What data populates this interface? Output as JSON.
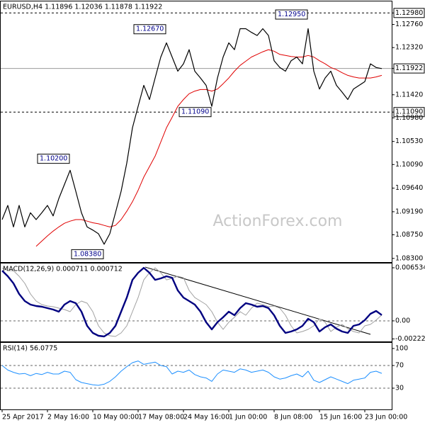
{
  "chart_data": [
    {
      "type": "line",
      "title": "EURUSD,H4  1.11896 1.12036 1.11878 1.11922",
      "watermark": "ActionForex.com",
      "xlim": [
        -0.25,
        68.75
      ],
      "ylim": [
        1.0823,
        1.132
      ],
      "yticks": [
        {
          "value": 1.1298,
          "label": "1.12980"
        },
        {
          "value": 1.1276,
          "label": "1.12760"
        },
        {
          "value": 1.1232,
          "label": "1.12320"
        },
        1.11922,
        {
          "value": 1.1142,
          "label": "1.11420"
        },
        {
          "value": 1.1109,
          "label": "1.11090"
        },
        {
          "value": 1.1098,
          "label": "1.10980"
        },
        {
          "value": 1.1053,
          "label": "1.10530"
        },
        {
          "value": 1.1009,
          "label": "1.10090"
        },
        {
          "value": 1.0964,
          "label": "1.09640"
        },
        {
          "value": 1.0919,
          "label": "1.09190"
        },
        {
          "value": 1.0875,
          "label": "1.08750"
        },
        {
          "value": 1.083,
          "label": "1.08300"
        }
      ],
      "hlines": [
        1.1298,
        1.1109
      ],
      "current": 1.11922,
      "label_boxes": true,
      "series": [
        {
          "color": "#000000",
          "width": 1.2,
          "values": [
            1.0904,
            1.0931,
            1.089,
            1.0931,
            1.089,
            1.0917,
            1.0904,
            1.0917,
            1.0931,
            1.0911,
            1.0944,
            1.0971,
            1.0998,
            1.0958,
            1.0917,
            1.089,
            1.0884,
            1.0877,
            1.0857,
            1.0877,
            1.0917,
            1.0958,
            1.1012,
            1.1079,
            1.112,
            1.116,
            1.1133,
            1.1174,
            1.1214,
            1.1241,
            1.1214,
            1.1187,
            1.1201,
            1.1228,
            1.1187,
            1.1174,
            1.116,
            1.112,
            1.1174,
            1.1214,
            1.1241,
            1.1228,
            1.1268,
            1.1268,
            1.1261,
            1.1255,
            1.1268,
            1.1255,
            1.1207,
            1.1194,
            1.1187,
            1.1207,
            1.1214,
            1.1201,
            1.1268,
            1.1187,
            1.1153,
            1.1174,
            1.1187,
            1.116,
            1.1147,
            1.1133,
            1.1153,
            1.116,
            1.1167,
            1.1201,
            1.1194,
            1.1192
          ]
        },
        {
          "color": "#e00000",
          "width": 1,
          "values": [
            null,
            null,
            null,
            null,
            null,
            null,
            1.0853,
            1.0863,
            1.0873,
            1.0882,
            1.089,
            1.0897,
            1.0901,
            1.0904,
            1.0904,
            1.0901,
            1.0898,
            1.0896,
            1.0893,
            1.089,
            1.0893,
            1.0904,
            1.092,
            1.0938,
            1.096,
            1.0985,
            1.1005,
            1.1025,
            1.1052,
            1.1079,
            1.1099,
            1.112,
            1.1133,
            1.1144,
            1.1149,
            1.1152,
            1.1152,
            1.1149,
            1.1153,
            1.1163,
            1.1174,
            1.1187,
            1.1198,
            1.1206,
            1.1214,
            1.1219,
            1.1224,
            1.1228,
            1.1225,
            1.1219,
            1.1217,
            1.1215,
            1.1214,
            1.1214,
            1.1217,
            1.1214,
            1.1207,
            1.1201,
            1.1194,
            1.119,
            1.1184,
            1.1179,
            1.1176,
            1.1174,
            1.1174,
            1.1174,
            1.1176,
            1.1179
          ]
        }
      ],
      "annotations": [
        {
          "x": 12,
          "value": 1.102,
          "label": "1.10200"
        },
        {
          "x": 29,
          "value": 1.1267,
          "label": "1.12670"
        },
        {
          "x": 18,
          "value": 1.0838,
          "label": "1.08380"
        },
        {
          "x": 37,
          "value": 1.1109,
          "label": "1.11090"
        },
        {
          "x": 54,
          "value": 1.1295,
          "label": "1.12950"
        }
      ]
    },
    {
      "type": "line",
      "title": "MACD(12,26,9) 0.000711 0.000712",
      "xlim": [
        -0.25,
        68.75
      ],
      "ylim": [
        -0.00253,
        0.00706
      ],
      "yticks": [
        0.006534,
        {
          "value": 0,
          "label": "0.00"
        },
        -0.002226
      ],
      "hlines": [
        0
      ],
      "series": [
        {
          "color": "#000080",
          "width": 2.4,
          "values": [
            0.00618,
            0.00549,
            0.00462,
            0.00331,
            0.00244,
            0.002,
            0.00183,
            0.00174,
            0.00157,
            0.00139,
            0.00113,
            0.002,
            0.00244,
            0.00218,
            0.00113,
            -0.00061,
            -0.00148,
            -0.00183,
            -0.00192,
            -0.00148,
            -0.00061,
            0.00113,
            0.00287,
            0.00505,
            0.00592,
            0.00653,
            0.00592,
            0.00505,
            0.00523,
            0.00549,
            0.00531,
            0.00375,
            0.00287,
            0.00244,
            0.002,
            0.00113,
            -0.00017,
            -0.00105,
            -0.00017,
            0.00044,
            0.00113,
            0.0007,
            0.00157,
            0.00218,
            0.002,
            0.00174,
            0.00183,
            0.00157,
            0.0007,
            -0.00061,
            -0.00148,
            -0.00131,
            -0.00105,
            -0.00061,
            0.00026,
            -0.00017,
            -0.00131,
            -0.00078,
            -0.00044,
            -0.00096,
            -0.00131,
            -0.00148,
            -0.00061,
            -0.00044,
            9e-05,
            0.00087,
            0.00122,
            0.00071
          ]
        },
        {
          "color": "#a0a0a0",
          "width": 1,
          "values": [
            0.0065,
            0.0062,
            0.00618,
            0.00549,
            0.00462,
            0.00331,
            0.00244,
            0.002,
            0.00183,
            0.00174,
            0.00157,
            0.00139,
            0.00113,
            0.002,
            0.00244,
            0.00218,
            0.00113,
            -0.00061,
            -0.00148,
            -0.00183,
            -0.00192,
            -0.00148,
            -0.00061,
            0.00113,
            0.00287,
            0.00505,
            0.00592,
            0.00653,
            0.00592,
            0.00505,
            0.00523,
            0.00549,
            0.00531,
            0.00375,
            0.00287,
            0.00244,
            0.002,
            0.00113,
            -0.00017,
            -0.00105,
            -0.00017,
            0.00044,
            0.00113,
            0.0007,
            0.00157,
            0.00218,
            0.002,
            0.00174,
            0.00183,
            0.00157,
            0.0007,
            -0.00061,
            -0.00148,
            -0.00131,
            -0.00105,
            -0.00061,
            0.00026,
            -0.00017,
            -0.00131,
            -0.00078,
            -0.00044,
            -0.00096,
            -0.00131,
            -0.00148,
            -0.00061,
            -0.00044,
            9e-05,
            0.000712
          ]
        }
      ],
      "trendline": {
        "x": [
          25.25,
          65
        ],
        "values": [
          0.00662,
          -0.00166
        ]
      }
    },
    {
      "type": "line",
      "title": "RSI(14) 56.0775",
      "xlim": [
        -0.25,
        68.75
      ],
      "ylim": [
        -7.5,
        110
      ],
      "yticks": [
        100,
        70,
        30
      ],
      "hlines": [
        70,
        30
      ],
      "series": [
        {
          "color": "#1e90ff",
          "width": 1,
          "values": [
            70,
            62,
            58,
            55,
            56,
            52,
            56,
            54,
            58,
            55,
            55,
            60,
            58,
            45,
            40,
            38,
            36,
            35,
            37,
            42,
            50,
            60,
            68,
            75,
            78,
            72,
            74,
            76,
            70,
            68,
            55,
            60,
            58,
            62,
            54,
            50,
            48,
            42,
            55,
            62,
            60,
            58,
            64,
            62,
            58,
            60,
            62,
            58,
            50,
            46,
            48,
            52,
            55,
            50,
            60,
            44,
            40,
            45,
            50,
            46,
            42,
            38,
            44,
            46,
            48,
            58,
            60,
            56.0775
          ]
        }
      ],
      "xticks": [
        {
          "value": 0,
          "label": "25 Apr 2017"
        },
        {
          "value": 8,
          "label": "2 May 16:00"
        },
        {
          "value": 16,
          "label": "10 May 00:00"
        },
        {
          "value": 24,
          "label": "17 May 08:00"
        },
        {
          "value": 32,
          "label": "24 May 16:00"
        },
        {
          "value": 40,
          "label": "1 Jun 00:00"
        },
        {
          "value": 48,
          "label": "8 Jun 08:00"
        },
        {
          "value": 56,
          "label": "15 Jun 16:00"
        },
        {
          "value": 64,
          "label": "23 Jun 00:00"
        }
      ]
    }
  ]
}
